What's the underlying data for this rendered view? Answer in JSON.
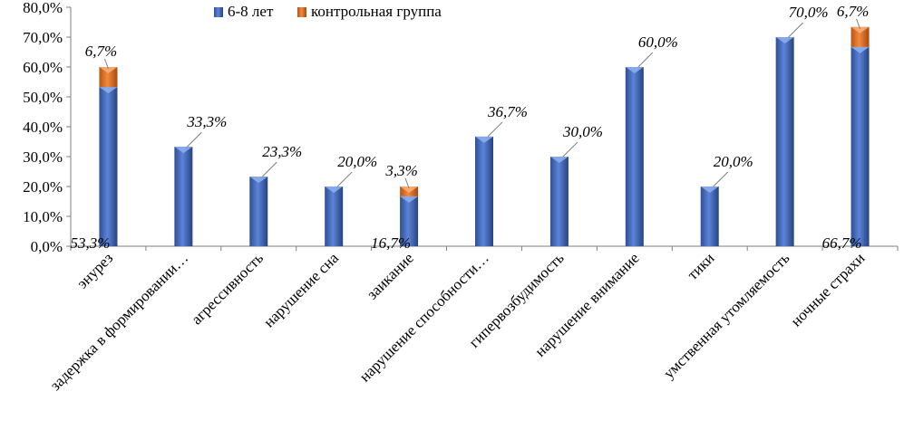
{
  "chart_data": {
    "type": "bar",
    "stacked": true,
    "categories": [
      "энурез",
      "задержка в формировании…",
      "агрессивность",
      "нарушение сна",
      "заикание",
      "нарушение способности…",
      "гипервозбудимость",
      "нарушение внимание",
      "тики",
      "умственная утомляемость",
      "ночные страхи"
    ],
    "series": [
      {
        "name": "6-8 лет",
        "color": "#4f73c0",
        "values": [
          53.3,
          33.3,
          23.3,
          20.0,
          16.7,
          36.7,
          30.0,
          60.0,
          20.0,
          70.0,
          66.7
        ],
        "labels": [
          "53,3%",
          "33,3%",
          "23,3%",
          "20,0%",
          "16,7%",
          "36,7%",
          "30,0%",
          "60,0%",
          "20,0%",
          "70,0%",
          "66,7%"
        ]
      },
      {
        "name": "контрольная группа",
        "color": "#e8772e",
        "values": [
          6.7,
          0,
          0,
          0,
          3.3,
          0,
          0,
          0,
          0,
          0,
          6.7
        ],
        "labels": [
          "6,7%",
          "",
          "",
          "",
          "3,3%",
          "",
          "",
          "",
          "",
          "",
          "6,7%"
        ]
      }
    ],
    "ylim": [
      0,
      80
    ],
    "yticks": [
      0,
      10,
      20,
      30,
      40,
      50,
      60,
      70,
      80
    ],
    "ytick_labels": [
      "0,0%",
      "10,0%",
      "20,0%",
      "30,0%",
      "40,0%",
      "50,0%",
      "60,0%",
      "70,0%",
      "80,0%"
    ],
    "legend_position": "top-center",
    "grid": false
  }
}
